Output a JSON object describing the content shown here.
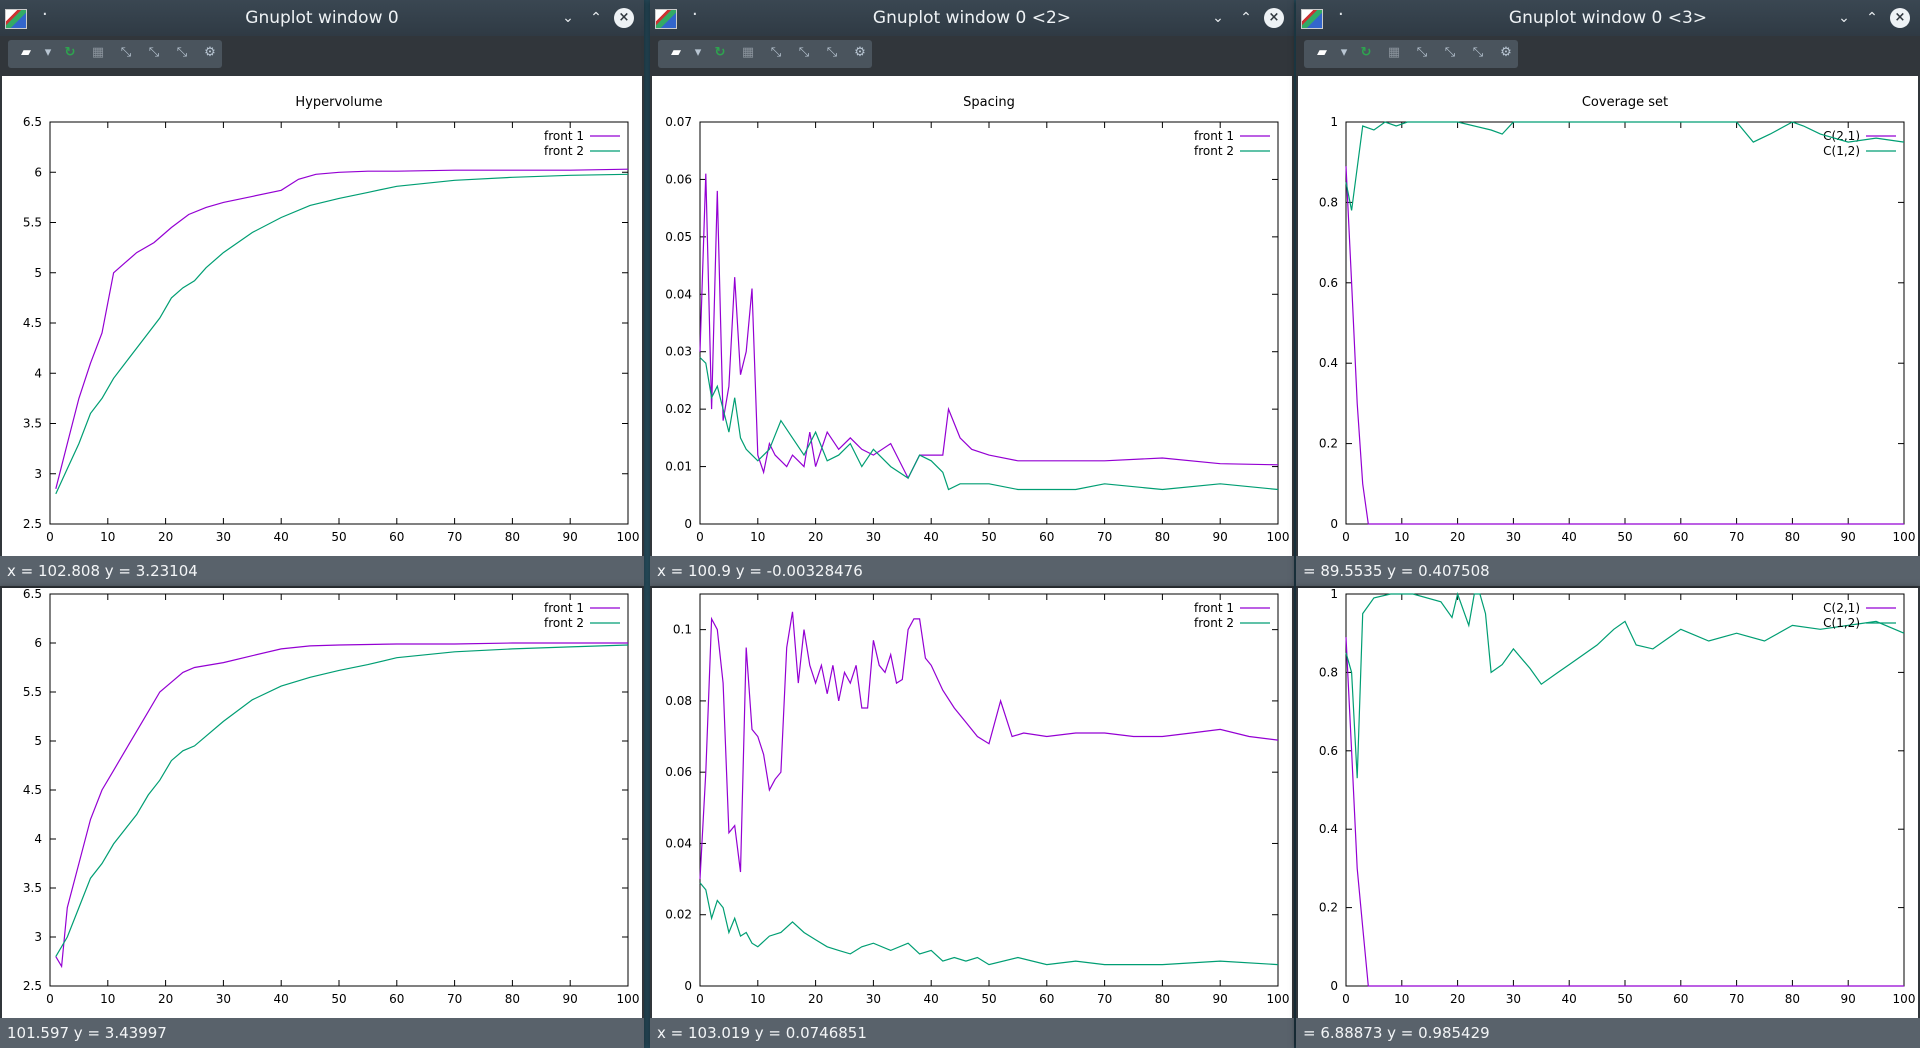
{
  "windows": [
    {
      "id": "w1",
      "title": "Gnuplot window 0",
      "status": "x = 102.808 y = 3.23104"
    },
    {
      "id": "w2",
      "title": "Gnuplot window 0 <2>",
      "status": "x = 100.9 y = -0.00328476"
    },
    {
      "id": "w3",
      "title": "Gnuplot window 0 <3>",
      "status": "= 89.5535 y = 0.407508"
    },
    {
      "id": "w4",
      "title": "",
      "status": "101.597 y = 3.43997"
    },
    {
      "id": "w5",
      "title": "",
      "status": "x = 103.019 y = 0.0746851"
    },
    {
      "id": "w6",
      "title": "",
      "status": "= 6.88873 y = 0.985429"
    }
  ],
  "toolbar": {
    "icons": [
      "export-icon",
      "dropdown-icon",
      "replot-icon",
      "grid-icon",
      "previous-zoom-icon",
      "next-zoom-icon",
      "autoscale-icon",
      "settings-icon"
    ]
  },
  "colors": {
    "series1": "#9400d3",
    "series2": "#009e73",
    "titlebar": "#303a43",
    "status": "#59626b"
  },
  "chart_data": [
    {
      "id": "hv1",
      "type": "line",
      "title": "Hypervolume",
      "xlim": [
        0,
        100
      ],
      "ylim": [
        2.5,
        6.5
      ],
      "xticks": [
        0,
        10,
        20,
        30,
        40,
        50,
        60,
        70,
        80,
        90,
        100
      ],
      "yticks": [
        2.5,
        3,
        3.5,
        4,
        4.5,
        5,
        5.5,
        6,
        6.5
      ],
      "legend_position": "top-right",
      "series": [
        {
          "name": "front 1",
          "x": [
            1,
            3,
            5,
            7,
            9,
            11,
            13,
            15,
            18,
            21,
            24,
            27,
            30,
            35,
            40,
            43,
            46,
            50,
            55,
            60,
            70,
            80,
            90,
            100
          ],
          "y": [
            2.85,
            3.3,
            3.75,
            4.1,
            4.4,
            5.0,
            5.1,
            5.2,
            5.3,
            5.45,
            5.58,
            5.65,
            5.7,
            5.76,
            5.82,
            5.93,
            5.98,
            6.0,
            6.01,
            6.01,
            6.02,
            6.02,
            6.02,
            6.03
          ]
        },
        {
          "name": "front 2",
          "x": [
            1,
            3,
            5,
            7,
            9,
            11,
            13,
            15,
            17,
            19,
            21,
            23,
            25,
            27,
            30,
            35,
            40,
            45,
            50,
            55,
            60,
            70,
            80,
            90,
            100
          ],
          "y": [
            2.8,
            3.05,
            3.3,
            3.6,
            3.75,
            3.95,
            4.1,
            4.25,
            4.4,
            4.55,
            4.75,
            4.85,
            4.92,
            5.05,
            5.2,
            5.4,
            5.55,
            5.67,
            5.74,
            5.8,
            5.86,
            5.92,
            5.95,
            5.97,
            5.98
          ]
        }
      ]
    },
    {
      "id": "sp1",
      "type": "line",
      "title": "Spacing",
      "xlim": [
        0,
        100
      ],
      "ylim": [
        0,
        0.07
      ],
      "xticks": [
        0,
        10,
        20,
        30,
        40,
        50,
        60,
        70,
        80,
        90,
        100
      ],
      "yticks": [
        0,
        0.01,
        0.02,
        0.03,
        0.04,
        0.05,
        0.06,
        0.07
      ],
      "legend_position": "top-right",
      "series": [
        {
          "name": "front 1",
          "x": [
            0,
            1,
            2,
            3,
            4,
            5,
            6,
            7,
            8,
            9,
            10,
            11,
            12,
            13,
            14,
            15,
            16,
            17,
            18,
            19,
            20,
            22,
            24,
            26,
            28,
            30,
            33,
            36,
            38,
            40,
            42,
            43,
            45,
            47,
            50,
            55,
            60,
            70,
            80,
            90,
            100
          ],
          "y": [
            0.03,
            0.061,
            0.02,
            0.058,
            0.018,
            0.024,
            0.043,
            0.026,
            0.03,
            0.041,
            0.012,
            0.009,
            0.014,
            0.012,
            0.011,
            0.01,
            0.012,
            0.011,
            0.01,
            0.016,
            0.01,
            0.016,
            0.013,
            0.015,
            0.013,
            0.012,
            0.014,
            0.008,
            0.012,
            0.012,
            0.012,
            0.02,
            0.015,
            0.013,
            0.012,
            0.011,
            0.011,
            0.011,
            0.0115,
            0.0105,
            0.0103
          ]
        },
        {
          "name": "front 2",
          "x": [
            0,
            1,
            2,
            3,
            4,
            5,
            6,
            7,
            8,
            9,
            10,
            12,
            14,
            16,
            18,
            20,
            22,
            24,
            26,
            28,
            30,
            33,
            36,
            38,
            40,
            42,
            43,
            45,
            50,
            55,
            60,
            65,
            70,
            80,
            90,
            100
          ],
          "y": [
            0.029,
            0.028,
            0.022,
            0.024,
            0.02,
            0.016,
            0.022,
            0.015,
            0.013,
            0.012,
            0.011,
            0.013,
            0.018,
            0.015,
            0.012,
            0.016,
            0.011,
            0.012,
            0.014,
            0.01,
            0.013,
            0.01,
            0.008,
            0.012,
            0.011,
            0.009,
            0.006,
            0.007,
            0.007,
            0.006,
            0.006,
            0.006,
            0.007,
            0.006,
            0.007,
            0.006
          ]
        }
      ]
    },
    {
      "id": "cs1",
      "type": "line",
      "title": "Coverage set",
      "xlim": [
        0,
        100
      ],
      "ylim": [
        0,
        1
      ],
      "xticks": [
        0,
        10,
        20,
        30,
        40,
        50,
        60,
        70,
        80,
        90,
        100
      ],
      "yticks": [
        0,
        0.2,
        0.4,
        0.6,
        0.8,
        1
      ],
      "legend_position": "top-right",
      "series": [
        {
          "name": "C(2,1)",
          "x": [
            0,
            1,
            2,
            3,
            4,
            5,
            100
          ],
          "y": [
            0.89,
            0.6,
            0.3,
            0.1,
            0.0,
            0.0,
            0.0
          ]
        },
        {
          "name": "C(1,2)",
          "x": [
            0,
            1,
            3,
            5,
            7,
            9,
            11,
            20,
            26,
            28,
            30,
            40,
            50,
            70,
            73,
            76,
            80,
            82,
            85,
            90,
            95,
            100
          ],
          "y": [
            0.85,
            0.78,
            0.99,
            0.98,
            1.0,
            0.99,
            1.0,
            1.0,
            0.98,
            0.97,
            1.0,
            1.0,
            1.0,
            1.0,
            0.95,
            0.97,
            1.0,
            0.99,
            0.97,
            0.95,
            0.96,
            0.95
          ]
        }
      ]
    },
    {
      "id": "hv2",
      "type": "line",
      "title": "",
      "xlim": [
        0,
        100
      ],
      "ylim": [
        2.5,
        6.5
      ],
      "xticks": [
        0,
        10,
        20,
        30,
        40,
        50,
        60,
        70,
        80,
        90,
        100
      ],
      "yticks": [
        2.5,
        3,
        3.5,
        4,
        4.5,
        5,
        5.5,
        6,
        6.5
      ],
      "legend_position": "top-right",
      "series": [
        {
          "name": "front 1",
          "x": [
            1,
            2,
            3,
            5,
            7,
            9,
            11,
            13,
            15,
            17,
            19,
            21,
            23,
            25,
            30,
            35,
            40,
            45,
            50,
            60,
            70,
            80,
            90,
            100
          ],
          "y": [
            2.8,
            2.7,
            3.3,
            3.75,
            4.2,
            4.5,
            4.7,
            4.9,
            5.1,
            5.3,
            5.5,
            5.6,
            5.7,
            5.75,
            5.8,
            5.87,
            5.94,
            5.97,
            5.98,
            5.99,
            5.99,
            6.0,
            6.0,
            6.0
          ]
        },
        {
          "name": "front 2",
          "x": [
            1,
            3,
            5,
            7,
            9,
            11,
            13,
            15,
            17,
            19,
            21,
            23,
            25,
            27,
            30,
            35,
            40,
            45,
            50,
            55,
            60,
            70,
            80,
            90,
            100
          ],
          "y": [
            2.8,
            3.0,
            3.3,
            3.6,
            3.75,
            3.95,
            4.1,
            4.25,
            4.45,
            4.6,
            4.8,
            4.9,
            4.95,
            5.05,
            5.2,
            5.42,
            5.56,
            5.65,
            5.72,
            5.78,
            5.85,
            5.91,
            5.94,
            5.96,
            5.98
          ]
        }
      ]
    },
    {
      "id": "sp2",
      "type": "line",
      "title": "",
      "xlim": [
        0,
        100
      ],
      "ylim": [
        0,
        0.11
      ],
      "xticks": [
        0,
        10,
        20,
        30,
        40,
        50,
        60,
        70,
        80,
        90,
        100
      ],
      "yticks": [
        0,
        0.02,
        0.04,
        0.06,
        0.08,
        0.1
      ],
      "legend_position": "top-right",
      "series": [
        {
          "name": "front 1",
          "x": [
            0,
            1,
            2,
            3,
            4,
            5,
            6,
            7,
            8,
            9,
            10,
            11,
            12,
            13,
            14,
            15,
            16,
            17,
            18,
            19,
            20,
            21,
            22,
            23,
            24,
            25,
            26,
            27,
            28,
            29,
            30,
            31,
            32,
            33,
            34,
            35,
            36,
            37,
            38,
            39,
            40,
            42,
            44,
            46,
            48,
            50,
            52,
            54,
            56,
            60,
            65,
            70,
            75,
            80,
            85,
            90,
            95,
            100
          ],
          "y": [
            0.03,
            0.06,
            0.103,
            0.1,
            0.085,
            0.043,
            0.045,
            0.032,
            0.095,
            0.072,
            0.07,
            0.065,
            0.055,
            0.058,
            0.06,
            0.095,
            0.105,
            0.085,
            0.1,
            0.09,
            0.085,
            0.09,
            0.082,
            0.09,
            0.08,
            0.088,
            0.085,
            0.09,
            0.078,
            0.078,
            0.097,
            0.09,
            0.088,
            0.093,
            0.085,
            0.086,
            0.1,
            0.103,
            0.103,
            0.092,
            0.09,
            0.083,
            0.078,
            0.074,
            0.07,
            0.068,
            0.08,
            0.07,
            0.071,
            0.07,
            0.071,
            0.071,
            0.07,
            0.07,
            0.071,
            0.072,
            0.07,
            0.069
          ]
        },
        {
          "name": "front 2",
          "x": [
            0,
            1,
            2,
            3,
            4,
            5,
            6,
            7,
            8,
            9,
            10,
            12,
            14,
            16,
            18,
            20,
            22,
            24,
            26,
            28,
            30,
            33,
            36,
            38,
            40,
            42,
            44,
            46,
            48,
            50,
            55,
            60,
            65,
            70,
            80,
            90,
            100
          ],
          "y": [
            0.029,
            0.027,
            0.019,
            0.024,
            0.022,
            0.015,
            0.019,
            0.014,
            0.015,
            0.012,
            0.011,
            0.014,
            0.015,
            0.018,
            0.015,
            0.013,
            0.011,
            0.01,
            0.009,
            0.011,
            0.012,
            0.01,
            0.012,
            0.009,
            0.01,
            0.007,
            0.008,
            0.007,
            0.008,
            0.006,
            0.008,
            0.006,
            0.007,
            0.006,
            0.006,
            0.007,
            0.006
          ]
        }
      ]
    },
    {
      "id": "cs2",
      "type": "line",
      "title": "",
      "xlim": [
        0,
        100
      ],
      "ylim": [
        0,
        1
      ],
      "xticks": [
        0,
        10,
        20,
        30,
        40,
        50,
        60,
        70,
        80,
        90,
        100
      ],
      "yticks": [
        0,
        0.2,
        0.4,
        0.6,
        0.8,
        1
      ],
      "legend_position": "top-right",
      "series": [
        {
          "name": "C(2,1)",
          "x": [
            0,
            1,
            2,
            3,
            4,
            5,
            100
          ],
          "y": [
            0.89,
            0.6,
            0.3,
            0.15,
            0.0,
            0.0,
            0.0
          ]
        },
        {
          "name": "C(1,2)",
          "x": [
            0,
            1,
            2,
            3,
            5,
            8,
            12,
            17,
            19,
            20,
            22,
            23,
            24,
            25,
            26,
            28,
            30,
            33,
            35,
            38,
            40,
            45,
            48,
            50,
            52,
            55,
            60,
            65,
            70,
            75,
            80,
            85,
            90,
            95,
            100
          ],
          "y": [
            0.85,
            0.8,
            0.53,
            0.95,
            0.99,
            1.0,
            1.0,
            0.98,
            0.94,
            1.0,
            0.92,
            1.0,
            1.0,
            0.95,
            0.8,
            0.82,
            0.86,
            0.81,
            0.77,
            0.8,
            0.82,
            0.87,
            0.91,
            0.93,
            0.87,
            0.86,
            0.91,
            0.88,
            0.9,
            0.88,
            0.92,
            0.91,
            0.92,
            0.93,
            0.9
          ]
        }
      ]
    }
  ]
}
